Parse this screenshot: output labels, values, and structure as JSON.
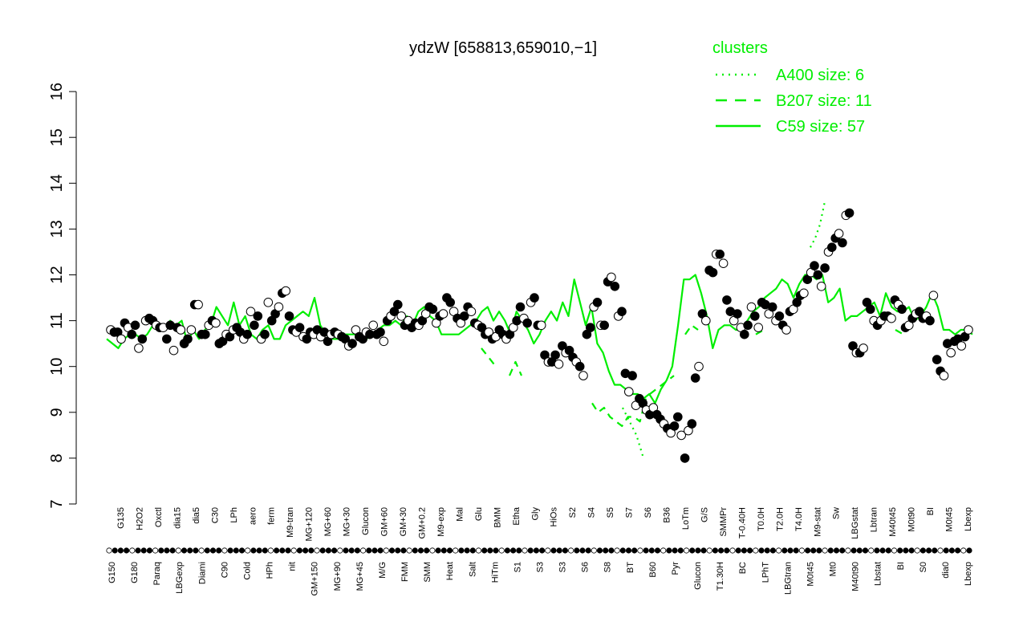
{
  "chart_data": {
    "type": "line",
    "title": "ydzW [658813,659010,−1]",
    "xlabel": "",
    "ylabel": "",
    "ylim": [
      7,
      16
    ],
    "yticks": [
      7,
      8,
      9,
      10,
      11,
      12,
      13,
      14,
      15,
      16
    ],
    "grid": false,
    "legend_placement": "top-right",
    "legend": {
      "title": "clusters",
      "entries": [
        {
          "label": "A400 size: 6",
          "style": "dotted"
        },
        {
          "label": "B207 size: 11",
          "style": "dashed"
        },
        {
          "label": "C59 size: 57",
          "style": "solid"
        }
      ]
    },
    "colors": {
      "cluster_lines": "#00ee00",
      "points": "#000000",
      "axis": "#000000"
    },
    "bottom_labels": [
      "G150",
      "G180",
      "Paraq",
      "LBGexp",
      "Diami",
      "C90",
      "Cold",
      "HPh",
      "nit",
      "GM+150",
      "MG+90",
      "MG+45",
      "M/G",
      "FMM",
      "SMM",
      "Heat",
      "Salt",
      "HiTm",
      "S1",
      "S3",
      "S3",
      "S6",
      "S8",
      "BT",
      "B60",
      "Pyr",
      "Glucon",
      "T1.30H",
      "BC",
      "LPhT",
      "LBGtran",
      "M0t45",
      "Mt0",
      "M40t90",
      "Lbstat",
      "BI",
      "S0",
      "dia0",
      "Lbexp"
    ],
    "top_labels": [
      "G135",
      "H2O2",
      "Oxctl",
      "dia15",
      "dia5",
      "C30",
      "LPh",
      "aero",
      "ferm",
      "M9-tran",
      "MG+120",
      "MG+60",
      "MG+30",
      "Glucon",
      "GM+60",
      "GM+30",
      "GM+0.2",
      "M9-exp",
      "Mal",
      "Glu",
      "BMM",
      "Etha",
      "Gly",
      "HiOs",
      "S2",
      "S4",
      "S5",
      "S7",
      "S6",
      "B36",
      "LoTm",
      "G/S",
      "SMMPr",
      "T-0.40H",
      "T0.0H",
      "T2.0H",
      "T4.0H",
      "M9-stat",
      "Sw",
      "LBGstat",
      "Lbtran",
      "M40t45",
      "M0t90",
      "BI",
      "M0t45",
      "Lbexp"
    ],
    "series": [
      {
        "name": "C59 size: 57",
        "style": "solid",
        "y": [
          10.6,
          10.5,
          10.4,
          10.6,
          10.7,
          10.7,
          10.6,
          10.7,
          10.9,
          10.9,
          10.8,
          11.0,
          10.9,
          11.0,
          10.5,
          10.8,
          10.6,
          10.8,
          10.9,
          11.3,
          11.1,
          10.9,
          11.4,
          10.9,
          11.1,
          10.7,
          10.6,
          10.8,
          10.9,
          10.6,
          10.6,
          10.9,
          11.0,
          11.1,
          11.2,
          11.1,
          11.5,
          10.9,
          10.7,
          10.6,
          10.6,
          10.7,
          10.7,
          10.7,
          10.6,
          10.6,
          10.7,
          10.8,
          10.9,
          10.9,
          11.0,
          10.9,
          11.1,
          10.9,
          11.2,
          11.3,
          11.1,
          11.0,
          10.7,
          10.7,
          10.7,
          10.7,
          10.8,
          10.9,
          11.0,
          11.2,
          11.3,
          11.0,
          11.2,
          11.0,
          10.7,
          11.2,
          11.0,
          10.8,
          10.5,
          10.7,
          11.0,
          11.2,
          11.0,
          11.4,
          11.1,
          11.9,
          11.4,
          10.9,
          11.3,
          10.5,
          10.3,
          9.9,
          9.6,
          9.6,
          9.5,
          9.4,
          9.4,
          9.3,
          9.4,
          9.2,
          9.5,
          9.7,
          10.0,
          10.9,
          11.9,
          11.9,
          12.0,
          11.6,
          11.1,
          10.4,
          10.8,
          10.9,
          10.9,
          10.8,
          10.8,
          11.0,
          11.2,
          11.3,
          11.5,
          11.6,
          11.7,
          11.9,
          11.8,
          11.5,
          11.8,
          12.0,
          12.0,
          11.9,
          12.0,
          11.4,
          11.5,
          11.7,
          11.0,
          11.1,
          11.1,
          11.2,
          11.3,
          11.4,
          11.1,
          11.6,
          11.3,
          11.2,
          11.2,
          11.3,
          11.0,
          11.1,
          11.3,
          11.6,
          11.3,
          10.8,
          10.8,
          10.7,
          10.8,
          10.8,
          10.7
        ]
      },
      {
        "name": "B207 size: 11",
        "style": "dashed",
        "segments": [
          {
            "y": [
              10.4,
              10.0
            ]
          },
          {
            "y": [
              9.8,
              10.1,
              9.8
            ]
          },
          {
            "y": [
              9.2,
              9.0,
              9.1,
              8.9,
              8.8,
              8.7,
              8.9,
              8.9,
              8.8,
              9.3
            ]
          },
          {
            "y": [
              9.4,
              9.6,
              9.8
            ]
          },
          {
            "y": [
              10.7,
              10.9,
              10.8
            ]
          },
          {
            "y": [
              10.7,
              10.8
            ]
          },
          {
            "y": [
              10.8,
              10.7
            ]
          }
        ]
      },
      {
        "name": "A400 size: 6",
        "style": "dotted",
        "segments": [
          {
            "y": [
              12.6,
              12.8,
              13.1,
              13.6
            ]
          },
          {
            "y": [
              9.1,
              8.8,
              8.5,
              8.0
            ]
          }
        ]
      }
    ],
    "points": [
      10.8,
      10.75,
      10.75,
      10.6,
      10.95,
      10.85,
      10.7,
      10.9,
      10.4,
      10.6,
      11.0,
      11.05,
      11.0,
      10.9,
      10.85,
      10.85,
      10.6,
      10.9,
      10.35,
      10.85,
      10.8,
      10.5,
      10.6,
      10.8,
      11.35,
      11.35,
      10.7,
      10.7,
      10.9,
      11.0,
      10.95,
      10.5,
      10.55,
      10.7,
      10.65,
      10.8,
      10.85,
      10.75,
      10.6,
      10.7,
      11.2,
      10.9,
      11.1,
      10.6,
      10.7,
      11.4,
      11.0,
      11.15,
      11.3,
      11.6,
      11.65,
      11.1,
      10.8,
      10.75,
      10.85,
      10.65,
      10.6,
      10.75,
      10.7,
      10.8,
      10.65,
      10.75,
      10.55,
      10.7,
      10.75,
      10.7,
      10.65,
      10.6,
      10.45,
      10.5,
      10.8,
      10.65,
      10.6,
      10.75,
      10.7,
      10.9,
      10.7,
      10.75,
      10.55,
      11.0,
      11.1,
      11.2,
      11.35,
      11.1,
      10.9,
      11.0,
      10.85,
      10.95,
      10.9,
      11.0,
      11.15,
      11.3,
      11.25,
      10.95,
      11.1,
      11.15,
      11.5,
      11.4,
      11.2,
      11.05,
      10.95,
      11.1,
      11.3,
      11.2,
      10.95,
      10.9,
      10.85,
      10.7,
      10.75,
      10.6,
      10.65,
      10.8,
      10.7,
      10.6,
      10.7,
      10.85,
      11.0,
      11.3,
      11.05,
      10.95,
      11.4,
      11.5,
      10.9,
      10.9,
      10.25,
      10.1,
      10.1,
      10.25,
      10.05,
      10.45,
      10.3,
      10.35,
      10.2,
      10.1,
      10.0,
      9.8,
      10.7,
      10.85,
      11.3,
      11.4,
      10.9,
      10.9,
      11.85,
      11.95,
      11.75,
      11.1,
      11.2,
      9.85,
      9.45,
      9.8,
      9.15,
      9.3,
      9.2,
      9.05,
      8.95,
      9.1,
      8.95,
      8.85,
      8.75,
      8.65,
      8.55,
      8.7,
      8.9,
      8.5,
      8.0,
      8.6,
      8.75,
      9.75,
      10.0,
      11.15,
      11.0,
      12.1,
      12.05,
      12.45,
      12.45,
      12.25,
      11.45,
      11.2,
      11.0,
      11.15,
      10.85,
      10.7,
      10.9,
      11.3,
      11.1,
      10.85,
      11.4,
      11.35,
      11.15,
      11.3,
      11.0,
      11.1,
      10.9,
      10.8,
      11.2,
      11.25,
      11.4,
      11.55,
      11.6,
      11.9,
      12.05,
      12.2,
      12.0,
      11.75,
      12.15,
      12.5,
      12.6,
      12.8,
      12.9,
      12.7,
      13.3,
      13.35,
      10.45,
      10.3,
      10.3,
      10.4,
      11.4,
      11.25,
      11.0,
      10.9,
      11.0,
      11.1,
      11.1,
      11.05,
      11.45,
      11.35,
      11.25,
      10.85,
      10.9,
      11.05,
      11.15,
      11.2,
      11.05,
      11.1,
      11.0,
      11.55,
      10.15,
      9.9,
      9.8,
      10.5,
      10.3,
      10.55,
      10.6,
      10.45,
      10.65,
      10.8
    ]
  }
}
